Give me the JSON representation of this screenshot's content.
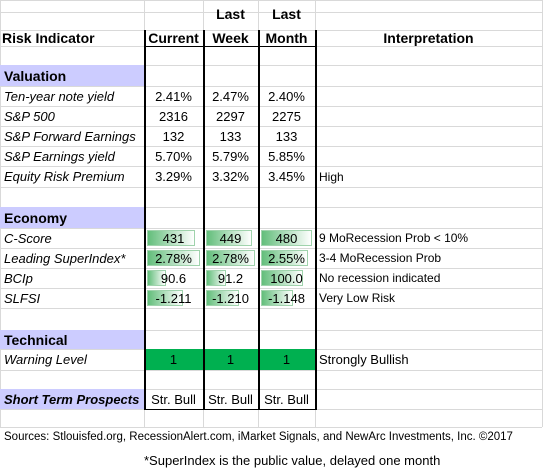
{
  "headers": {
    "indicator": "Risk Indicator",
    "current": "Current",
    "last_week_1": "Last",
    "last_week_2": "Week",
    "last_month_1": "Last",
    "last_month_2": "Month",
    "interpretation": "Interpretation"
  },
  "valuation": {
    "title": "Valuation",
    "rows": [
      {
        "label": "Ten-year note yield",
        "current": "2.41%",
        "last_week": "2.47%",
        "last_month": "2.40%",
        "interpretation": ""
      },
      {
        "label": "S&P 500",
        "current": "2316",
        "last_week": "2297",
        "last_month": "2275",
        "interpretation": ""
      },
      {
        "label": "S&P Forward Earnings",
        "current": "132",
        "last_week": "133",
        "last_month": "133",
        "interpretation": ""
      },
      {
        "label": "S&P Earnings yield",
        "current": "5.70%",
        "last_week": "5.79%",
        "last_month": "5.85%",
        "interpretation": ""
      },
      {
        "label": "Equity Risk Premium",
        "current": "3.29%",
        "last_week": "3.32%",
        "last_month": "3.45%",
        "interpretation": "High"
      }
    ]
  },
  "economy": {
    "title": "Economy",
    "rows": [
      {
        "label": "C-Score",
        "current": "431",
        "last_week": "449",
        "last_month": "480",
        "interpretation": "9 MoRecession Prob < 10%",
        "bars": [
          0.9,
          0.93,
          1.0
        ]
      },
      {
        "label": "Leading SuperIndex*",
        "current": "2.78%",
        "last_week": "2.78%",
        "last_month": "2.55%",
        "interpretation": "3-4 MoRecession Prob",
        "bars": [
          1.0,
          1.0,
          0.92
        ]
      },
      {
        "label": "BCIp",
        "current": "90.6",
        "last_week": "91.2",
        "last_month": "100.0",
        "interpretation": "No recession indicated",
        "bars": [
          0.35,
          0.4,
          0.82
        ]
      },
      {
        "label": "SLFSI",
        "current": "-1.211",
        "last_week": "-1.210",
        "last_month": "-1.148",
        "interpretation": "Very Low Risk",
        "bars": [
          0.68,
          0.68,
          0.62
        ]
      }
    ]
  },
  "technical": {
    "title": "Technical",
    "rows": [
      {
        "label": "Warning Level",
        "current": "1",
        "last_week": "1",
        "last_month": "1",
        "interpretation": "Strongly Bullish"
      }
    ]
  },
  "prospects": {
    "label": "Short Term Prospects",
    "current": "Str. Bull",
    "last_week": "Str. Bull",
    "last_month": "Str. Bull"
  },
  "footer": {
    "sources": "Sources: Stlouisfed.org, RecessionAlert.com, iMarket Signals, and NewArc Investments, Inc. ©2017",
    "note": "*SuperIndex is the public value, delayed one month"
  },
  "colors": {
    "section_fill": "#ccccff",
    "bar_gradient_start": "#63be7b",
    "bar_gradient_end": "#ffffff",
    "warning_fill": "#00b050"
  }
}
